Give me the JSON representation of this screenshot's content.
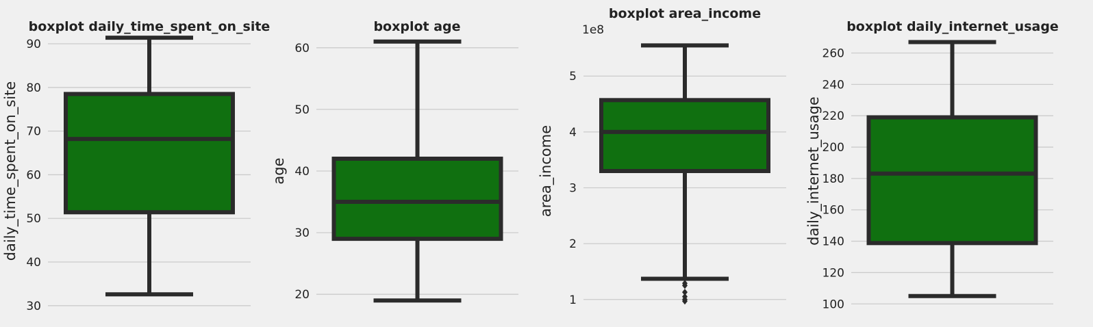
{
  "chart_data": [
    {
      "type": "box",
      "title": "boxplot daily_time_spent_on_site",
      "ylabel": "daily_time_spent_on_site",
      "offset_label": "",
      "ylim": [
        29.5,
        92.2
      ],
      "yticks": [
        30,
        40,
        50,
        60,
        70,
        80,
        90
      ],
      "yticklabels": [
        "30",
        "40",
        "50",
        "60",
        "70",
        "80",
        "90"
      ],
      "whisker_low": 32.6,
      "q1": 51.4,
      "median": 68.2,
      "q3": 78.5,
      "whisker_high": 91.4,
      "outliers": [],
      "fill": "#107010"
    },
    {
      "type": "box",
      "title": "boxplot age",
      "ylabel": "age",
      "offset_label": "",
      "ylim": [
        17.8,
        62.2
      ],
      "yticks": [
        20,
        30,
        40,
        50,
        60
      ],
      "yticklabels": [
        "20",
        "30",
        "40",
        "50",
        "60"
      ],
      "whisker_low": 19,
      "q1": 29,
      "median": 35,
      "q3": 42,
      "whisker_high": 61,
      "outliers": [],
      "fill": "#107010"
    },
    {
      "type": "box",
      "title": "boxplot area_income",
      "ylabel": "area_income",
      "offset_label": "1e8",
      "ylim": [
        0.85,
        5.75
      ],
      "yticks": [
        1,
        2,
        3,
        4,
        5
      ],
      "yticklabels": [
        "1",
        "2",
        "3",
        "4",
        "5"
      ],
      "whisker_low": 1.37,
      "q1": 3.3,
      "median": 4.0,
      "q3": 4.57,
      "whisker_high": 5.55,
      "outliers": [
        1.29,
        1.25,
        1.13,
        1.05,
        1.0,
        0.97
      ],
      "fill": "#107010"
    },
    {
      "type": "box",
      "title": "boxplot daily_internet_usage",
      "ylabel": "daily_internet_usage",
      "offset_label": "",
      "ylim": [
        97.5,
        272
      ],
      "yticks": [
        100,
        120,
        140,
        160,
        180,
        200,
        220,
        240,
        260
      ],
      "yticklabels": [
        "100",
        "120",
        "140",
        "160",
        "180",
        "200",
        "220",
        "240",
        "260"
      ],
      "whisker_low": 105,
      "q1": 138.8,
      "median": 183.1,
      "q3": 219,
      "whisker_high": 267,
      "outliers": [],
      "fill": "#107010"
    }
  ]
}
